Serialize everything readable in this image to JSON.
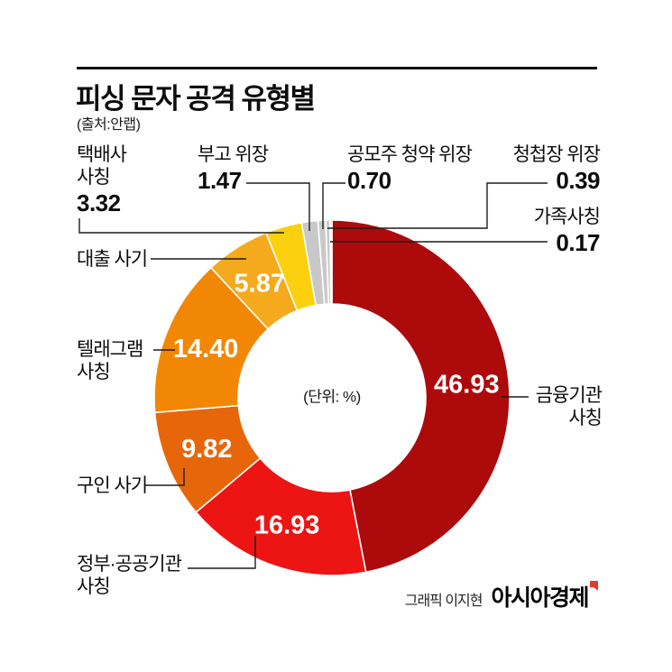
{
  "header": {
    "title": "피싱 문자 공격 유형별",
    "source": "(출처:안랩)"
  },
  "chart_data": {
    "type": "pie",
    "subtype": "donut",
    "title": "피싱 문자 공격 유형별",
    "unit_label": "(단위: %)",
    "start_angle_deg": 0,
    "direction": "clockwise",
    "slices": [
      {
        "label": "금융기관 사칭",
        "value": 46.93,
        "display": "46.93",
        "color": "#ad0a0c",
        "inside_label": true
      },
      {
        "label": "정부·공공기관 사칭",
        "value": 16.93,
        "display": "16.93",
        "color": "#ed1414",
        "inside_label": true
      },
      {
        "label": "구인 사기",
        "value": 9.82,
        "display": "9.82",
        "color": "#e8660a",
        "inside_label": true
      },
      {
        "label": "텔래그램 사칭",
        "value": 14.4,
        "display": "14.40",
        "color": "#f28705",
        "inside_label": true
      },
      {
        "label": "대출 사기",
        "value": 5.87,
        "display": "5.87",
        "color": "#f5a91c",
        "inside_label": true
      },
      {
        "label": "택배사 사칭",
        "value": 3.32,
        "display": "3.32",
        "color": "#fdd00f",
        "inside_label": false
      },
      {
        "label": "부고 위장",
        "value": 1.47,
        "display": "1.47",
        "color": "#c8c8c8",
        "inside_label": false
      },
      {
        "label": "공모주 청약 위장",
        "value": 0.7,
        "display": "0.70",
        "color": "#c9c9c9",
        "inside_label": false
      },
      {
        "label": "청첩장 위장",
        "value": 0.39,
        "display": "0.39",
        "color": "#c8c8c8",
        "inside_label": false
      },
      {
        "label": "가족사칭",
        "value": 0.17,
        "display": "0.17",
        "color": "#cccccc",
        "inside_label": false
      }
    ]
  },
  "callouts": {
    "taekbaesa": {
      "line1": "택배사",
      "line2": "사칭",
      "value": "3.32"
    },
    "bugo": {
      "label": "부고 위장",
      "value": "1.47"
    },
    "gongmoju": {
      "label": "공모주 청약 위장",
      "value": "0.70"
    },
    "cheongcheopjang": {
      "label": "청첩장 위장",
      "value": "0.39"
    },
    "gajok": {
      "label": "가족사칭",
      "value": "0.17"
    },
    "daechul": {
      "label": "대출 사기"
    },
    "telegram": {
      "line1": "텔래그램",
      "line2": "사칭"
    },
    "guin": {
      "label": "구인 사기"
    },
    "jeongbu": {
      "line1": "정부·공공기관",
      "line2": "사칭"
    },
    "geumyung": {
      "line1": "금융기관",
      "line2": "사칭"
    }
  },
  "footer": {
    "credit": "그래픽 이지현",
    "brand": "아시아경제"
  }
}
